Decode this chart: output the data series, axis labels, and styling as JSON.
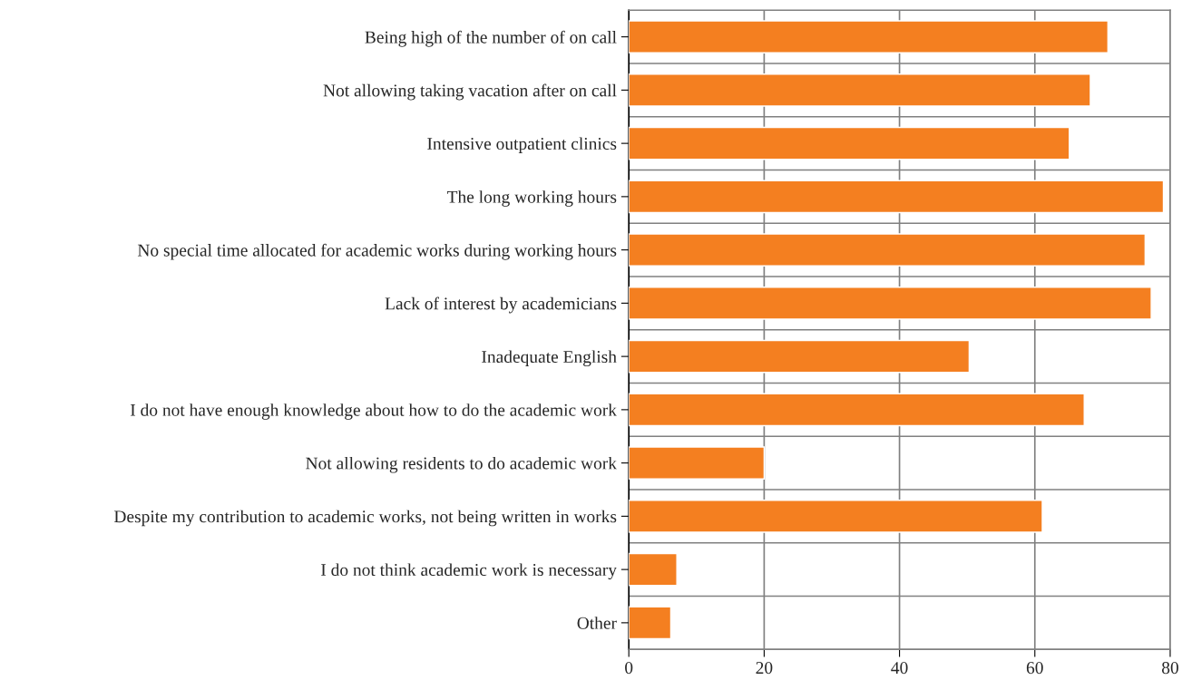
{
  "chart_data": {
    "type": "bar",
    "orientation": "horizontal",
    "categories": [
      "Being high of the number of on call",
      "Not allowing taking vacation after on call",
      "Intensive outpatient clinics",
      "The long working hours",
      "No special time allocated for academic works during working hours",
      "Lack of interest by academicians",
      "Inadequate English",
      "I do not have enough knowledge about how to do the academic work",
      "Not allowing residents to do academic work",
      "Despite my contribution to academic works, not being written in works",
      "I do not think academic work is necessary",
      "Other"
    ],
    "values": [
      70.8,
      68.2,
      65.1,
      79,
      76.3,
      77.2,
      50.3,
      67.3,
      20,
      61.1,
      7.1,
      6.2
    ],
    "color": "#f47f20",
    "xlim": [
      0,
      80
    ],
    "xticks": [
      0,
      20,
      40,
      60,
      80
    ],
    "grid": true
  }
}
